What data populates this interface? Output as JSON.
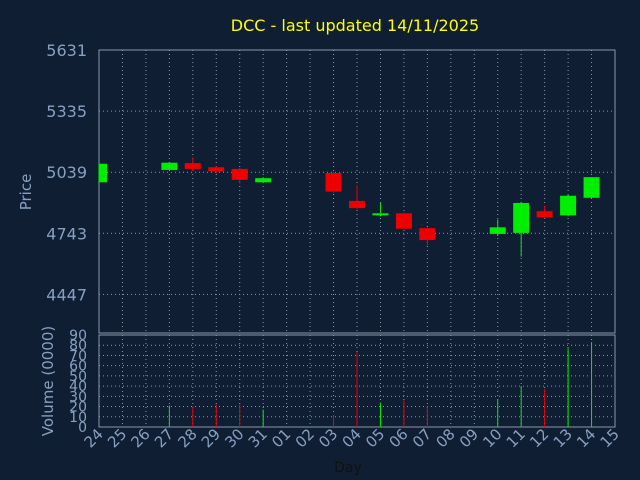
{
  "chart_data": {
    "type": "candlestick",
    "title": "DCC - last updated 14/11/2025",
    "xlabel": "Day",
    "ylabel_price": "Price",
    "ylabel_volume": "Volume (0000)",
    "x_ticks": [
      "24",
      "25",
      "26",
      "27",
      "28",
      "29",
      "30",
      "31",
      "01",
      "02",
      "03",
      "04",
      "05",
      "06",
      "07",
      "08",
      "09",
      "10",
      "11",
      "12",
      "13",
      "14",
      "15"
    ],
    "price_ticks": [
      5631,
      5335,
      5039,
      4743,
      4447
    ],
    "price_range": [
      4260,
      5631
    ],
    "volume_ticks": [
      0,
      10,
      20,
      30,
      40,
      50,
      60,
      70,
      80,
      90
    ],
    "volume_range": [
      0,
      90
    ],
    "grid": true,
    "colors": {
      "up": "#00ee00",
      "down": "#ee0000",
      "text": "#88a0c0",
      "title": "#ffff00",
      "frame": "#8899aa",
      "grid": "#8899aa"
    },
    "candles": [
      {
        "day": "24",
        "open": 4990,
        "close": 5080,
        "high": 5080,
        "low": 4990,
        "volume": null
      },
      {
        "day": "27",
        "open": 5050,
        "close": 5085,
        "high": 5088,
        "low": 5050,
        "volume": 21
      },
      {
        "day": "28",
        "open": 5083,
        "close": 5055,
        "high": 5110,
        "low": 5045,
        "volume": 20
      },
      {
        "day": "29",
        "open": 5063,
        "close": 5043,
        "high": 5068,
        "low": 5035,
        "volume": 22
      },
      {
        "day": "30",
        "open": 5055,
        "close": 5002,
        "high": 5060,
        "low": 4985,
        "volume": 22
      },
      {
        "day": "31",
        "open": 4990,
        "close": 5010,
        "high": 5015,
        "low": 4990,
        "volume": 17
      },
      {
        "day": "03",
        "open": 5035,
        "close": 4945,
        "high": 5040,
        "low": 4938,
        "volume": 12
      },
      {
        "day": "04",
        "open": 4900,
        "close": 4865,
        "high": 4975,
        "low": 4860,
        "volume": 73
      },
      {
        "day": "05",
        "open": 4830,
        "close": 4840,
        "high": 4890,
        "low": 4825,
        "volume": 24
      },
      {
        "day": "06",
        "open": 4840,
        "close": 4765,
        "high": 4840,
        "low": 4765,
        "volume": 26
      },
      {
        "day": "07",
        "open": 4768,
        "close": 4710,
        "high": 4770,
        "low": 4685,
        "volume": 20
      },
      {
        "day": "10",
        "open": 4740,
        "close": 4772,
        "high": 4810,
        "low": 4730,
        "volume": 27
      },
      {
        "day": "11",
        "open": 4745,
        "close": 4890,
        "high": 4895,
        "low": 4630,
        "volume": 40
      },
      {
        "day": "12",
        "open": 4850,
        "close": 4820,
        "high": 4875,
        "low": 4815,
        "volume": 37
      },
      {
        "day": "13",
        "open": 4830,
        "close": 4925,
        "high": 4930,
        "low": 4825,
        "volume": 77
      },
      {
        "day": "14",
        "open": 4915,
        "close": 5015,
        "high": 5015,
        "low": 4910,
        "volume": 83
      }
    ]
  }
}
